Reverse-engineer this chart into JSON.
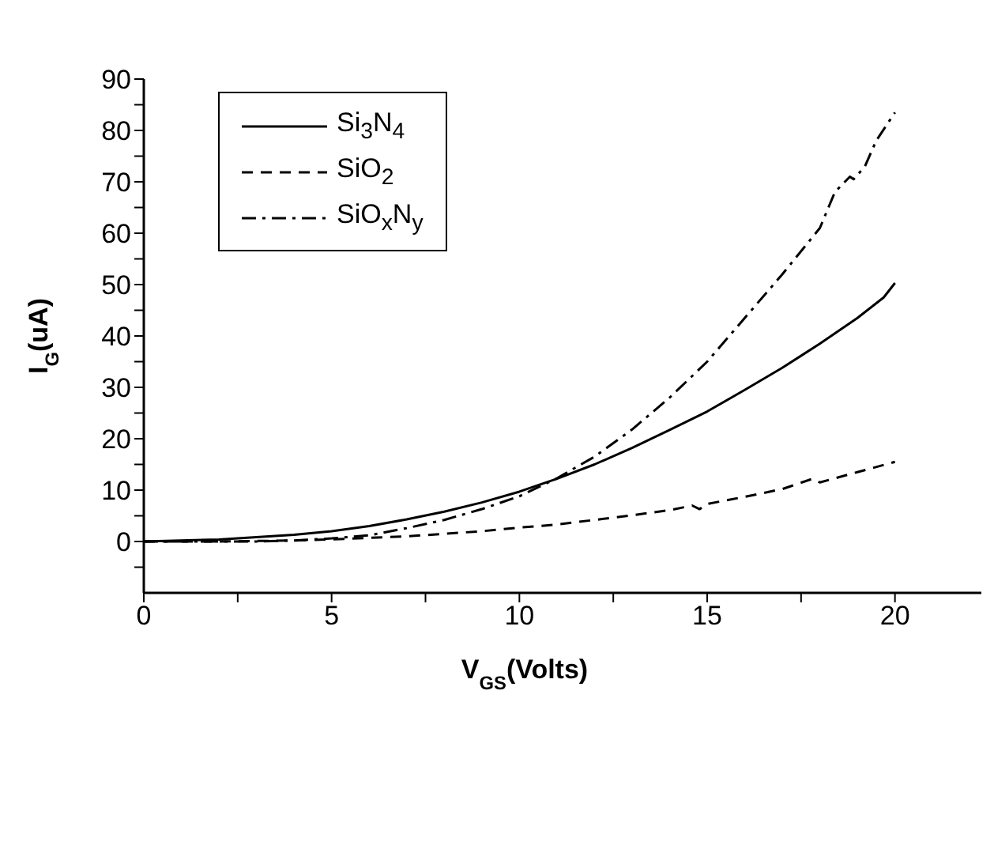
{
  "chart_data": {
    "type": "line",
    "xlabel": "V$_{GS}$(Volts)",
    "ylabel": "I$_{G}$(uA)",
    "xlim": [
      0,
      22.3
    ],
    "xticks": [
      0,
      {
        "value": 2.5,
        "label": null
      },
      5,
      {
        "value": 7.5,
        "label": null
      },
      10,
      {
        "value": 12.5,
        "label": null
      },
      15,
      {
        "value": 17.5,
        "label": null
      },
      20
    ],
    "ylim": [
      -10,
      90
    ],
    "yticks": [
      {
        "value": -5,
        "label": null
      },
      0,
      {
        "value": 5,
        "label": null
      },
      10,
      {
        "value": 15,
        "label": null
      },
      20,
      {
        "value": 25,
        "label": null
      },
      30,
      {
        "value": 35,
        "label": null
      },
      40,
      {
        "value": 45,
        "label": null
      },
      50,
      {
        "value": 55,
        "label": null
      },
      60,
      {
        "value": 65,
        "label": null
      },
      70,
      {
        "value": 75,
        "label": null
      },
      80,
      {
        "value": 85,
        "label": null
      },
      90
    ],
    "legend": "top left",
    "marker": "none",
    "series": [
      {
        "name": "Si$_{3}$N$_{4}$",
        "color": "#000000",
        "line_style": "solid",
        "x": [
          0,
          2,
          4,
          5,
          6,
          7,
          8,
          9,
          10,
          11,
          12,
          13,
          14,
          15,
          16,
          17,
          18,
          19,
          19.7,
          20
        ],
        "values": [
          0,
          0.4,
          1.3,
          2,
          3,
          4.3,
          5.8,
          7.6,
          9.7,
          12.2,
          15,
          18.2,
          21.7,
          25.3,
          29.5,
          33.8,
          38.5,
          43.5,
          47.5,
          50.3
        ]
      },
      {
        "name": "SiO$_{2}$",
        "color": "#000000",
        "line_style": "dashed",
        "x": [
          0,
          2,
          4,
          5,
          6,
          7,
          8,
          9,
          10,
          11,
          12,
          13,
          14,
          14.6,
          14.8,
          15,
          16,
          17,
          17.8,
          18,
          19,
          20
        ],
        "values": [
          0,
          0,
          0.2,
          0.4,
          0.7,
          1,
          1.5,
          2,
          2.7,
          3.3,
          4.2,
          5.1,
          6.1,
          7,
          6.3,
          7.3,
          8.7,
          10.2,
          12.2,
          11.5,
          13.5,
          15.5
        ]
      },
      {
        "name": "SiO$_{x}$N$_{y}$",
        "color": "#000000",
        "line_style": "dashdot",
        "x": [
          0,
          3,
          4,
          5,
          6,
          7,
          8,
          9,
          10,
          11,
          12,
          13,
          14,
          15,
          16,
          17,
          18,
          18.4,
          18.8,
          18.9,
          19.2,
          19.5,
          20
        ],
        "values": [
          0,
          0,
          0.2,
          0.6,
          1.2,
          2.6,
          4.2,
          6.3,
          8.8,
          12.3,
          16.5,
          21.8,
          28,
          35,
          43.5,
          52,
          61,
          68,
          71,
          70.5,
          73,
          78,
          83.5
        ]
      }
    ]
  }
}
